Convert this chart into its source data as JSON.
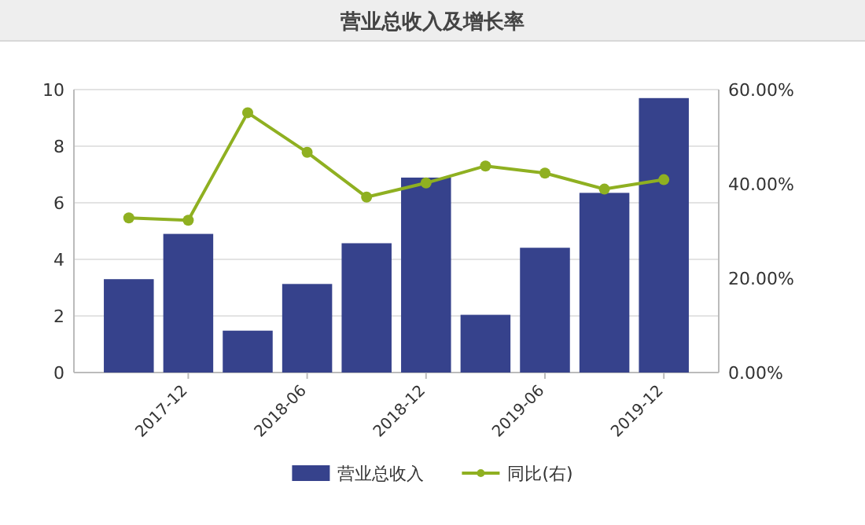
{
  "chart_data": {
    "type": "bar",
    "title": "营业总收入及增长率",
    "categories": [
      null,
      "2017-12",
      null,
      "2018-06",
      null,
      "2018-12",
      null,
      "2019-06",
      null,
      "2019-12"
    ],
    "series": [
      {
        "name": "营业总收入",
        "color": "#36428c",
        "values": [
          3.3,
          4.9,
          1.48,
          3.13,
          4.57,
          6.89,
          2.04,
          4.41,
          6.35,
          9.7
        ]
      },
      {
        "name": "同比(右)",
        "type": "line",
        "axis": "y2",
        "color": "#8fb021",
        "values": [
          32.8,
          32.3,
          55.1,
          46.7,
          37.2,
          40.2,
          43.8,
          42.3,
          38.9,
          40.9
        ]
      }
    ],
    "ylim": [
      0,
      10
    ],
    "yticks": [
      0,
      2,
      4,
      6,
      8,
      10
    ],
    "y2lim": [
      0,
      60
    ],
    "y2ticks": [
      {
        "value": 0,
        "label": "0.00%"
      },
      {
        "value": 20,
        "label": "20.00%"
      },
      {
        "value": 40,
        "label": "40.00%"
      },
      {
        "value": 60,
        "label": "60.00%"
      }
    ],
    "grid": "y",
    "legend": "bottom",
    "marker": "circle"
  }
}
